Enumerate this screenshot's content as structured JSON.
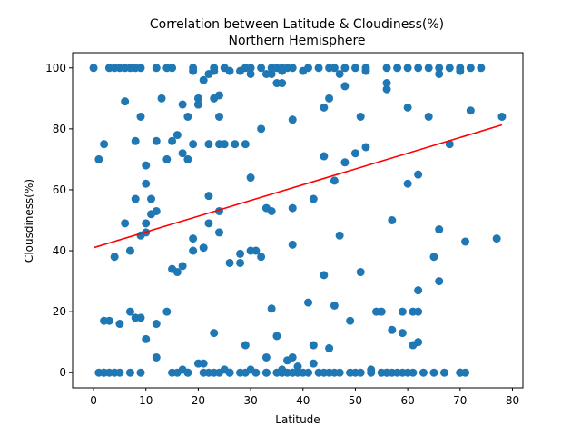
{
  "chart_data": {
    "type": "scatter",
    "title_line1": "Correlation between Latitude & Cloudiness(%)",
    "title_line2": "Northern Hemisphere",
    "xlabel": "Latitude",
    "ylabel": "Clousdiness(%)",
    "xlim": [
      -4,
      82
    ],
    "ylim": [
      -5,
      105
    ],
    "x_ticks": [
      0,
      10,
      20,
      30,
      40,
      50,
      60,
      70,
      80
    ],
    "y_ticks": [
      0,
      20,
      40,
      60,
      80,
      100
    ],
    "grid": false,
    "colors": {
      "points": "#1f77b4",
      "regression_line": "#ff0000",
      "axes": "#000000"
    },
    "regression_line": {
      "x": [
        0,
        78
      ],
      "y": [
        41,
        81.3
      ]
    },
    "x": [
      0,
      3,
      4,
      5,
      6,
      7,
      8,
      9,
      12,
      14,
      15,
      19,
      23,
      25,
      29,
      30,
      32,
      34,
      35,
      36,
      37,
      38,
      41,
      43,
      45,
      46,
      48,
      50,
      52,
      56,
      58,
      60,
      62,
      64,
      66,
      68,
      70,
      72,
      74,
      1,
      2,
      18,
      20,
      22,
      24,
      21,
      23,
      24,
      6,
      9,
      16,
      17,
      19,
      25,
      27,
      29,
      36,
      44,
      45,
      48,
      50,
      51,
      56,
      60,
      64,
      19,
      22,
      23,
      26,
      28,
      30,
      36,
      40,
      47,
      52,
      66,
      70,
      72,
      78,
      8,
      10,
      12,
      13,
      18,
      20,
      24,
      30,
      32,
      33,
      34,
      35,
      44,
      14,
      15,
      17,
      20,
      38,
      56,
      60,
      62,
      4,
      6,
      7,
      8,
      10,
      11,
      22,
      24,
      31,
      33,
      34,
      38,
      42,
      46,
      48,
      52,
      2,
      3,
      5,
      7,
      9,
      10,
      11,
      12,
      14,
      16,
      19,
      21,
      22,
      26,
      28,
      30,
      32,
      34,
      38,
      41,
      44,
      47,
      49,
      51,
      54,
      57,
      59,
      62,
      66,
      71,
      10,
      12,
      15,
      17,
      19,
      24,
      28,
      35,
      37,
      39,
      46,
      57,
      61,
      62,
      1,
      2,
      3,
      5,
      8,
      9,
      10,
      12,
      17,
      21,
      23,
      25,
      29,
      33,
      36,
      38,
      42,
      45,
      50,
      53,
      56,
      59,
      61,
      65,
      68,
      18,
      20,
      23,
      26,
      30,
      33,
      36,
      38,
      42,
      44,
      46,
      49,
      55,
      59,
      62,
      66,
      70,
      2,
      4,
      7,
      9,
      15,
      16,
      18,
      21,
      22,
      24,
      26,
      28,
      29,
      31,
      33,
      35,
      36,
      37,
      38,
      39,
      40,
      41,
      43,
      45,
      47,
      49,
      51,
      53,
      55,
      56,
      57,
      58,
      60,
      61,
      63,
      65,
      67,
      70,
      71,
      77
    ],
    "y": [
      100,
      100,
      100,
      100,
      100,
      100,
      100,
      100,
      100,
      100,
      100,
      100,
      100,
      100,
      100,
      100,
      100,
      100,
      100,
      100,
      100,
      100,
      100,
      100,
      100,
      100,
      100,
      100,
      100,
      100,
      100,
      100,
      100,
      100,
      100,
      100,
      100,
      100,
      100,
      70,
      75,
      84,
      88,
      75,
      84,
      96,
      90,
      75,
      89,
      84,
      78,
      88,
      75,
      75,
      75,
      75,
      95,
      87,
      90,
      94,
      72,
      84,
      95,
      87,
      84,
      99,
      98,
      99,
      99,
      99,
      98,
      99,
      99,
      98,
      99,
      98,
      99,
      86,
      84,
      76,
      62,
      76,
      90,
      70,
      88,
      91,
      64,
      80,
      98,
      98,
      95,
      71,
      70,
      76,
      72,
      90,
      83,
      93,
      62,
      65,
      38,
      49,
      40,
      57,
      49,
      57,
      49,
      53,
      40,
      54,
      53,
      54,
      57,
      63,
      69,
      74,
      17,
      17,
      16,
      20,
      45,
      68,
      52,
      53,
      20,
      33,
      44,
      41,
      58,
      36,
      36,
      40,
      38,
      21,
      42,
      23,
      32,
      45,
      17,
      33,
      20,
      50,
      20,
      27,
      47,
      43,
      46,
      16,
      34,
      35,
      40,
      46,
      39,
      12,
      4,
      2,
      22,
      14,
      9,
      10,
      0,
      0,
      0,
      0,
      18,
      18,
      11,
      5,
      1,
      3,
      13,
      1,
      9,
      5,
      1,
      0,
      9,
      8,
      0,
      1,
      0,
      13,
      20,
      38,
      75,
      0,
      3,
      0,
      0,
      1,
      0,
      0,
      5,
      3,
      0,
      0,
      0,
      20,
      0,
      20,
      30,
      0,
      0,
      0,
      0,
      0,
      0,
      0,
      0,
      0,
      0,
      0,
      0,
      0,
      0,
      0,
      0,
      0,
      0,
      0,
      0,
      0,
      0,
      0,
      0,
      0,
      0,
      0,
      0,
      0,
      0,
      0,
      0,
      0,
      0,
      0,
      0,
      0,
      0,
      0,
      0,
      44
    ]
  }
}
